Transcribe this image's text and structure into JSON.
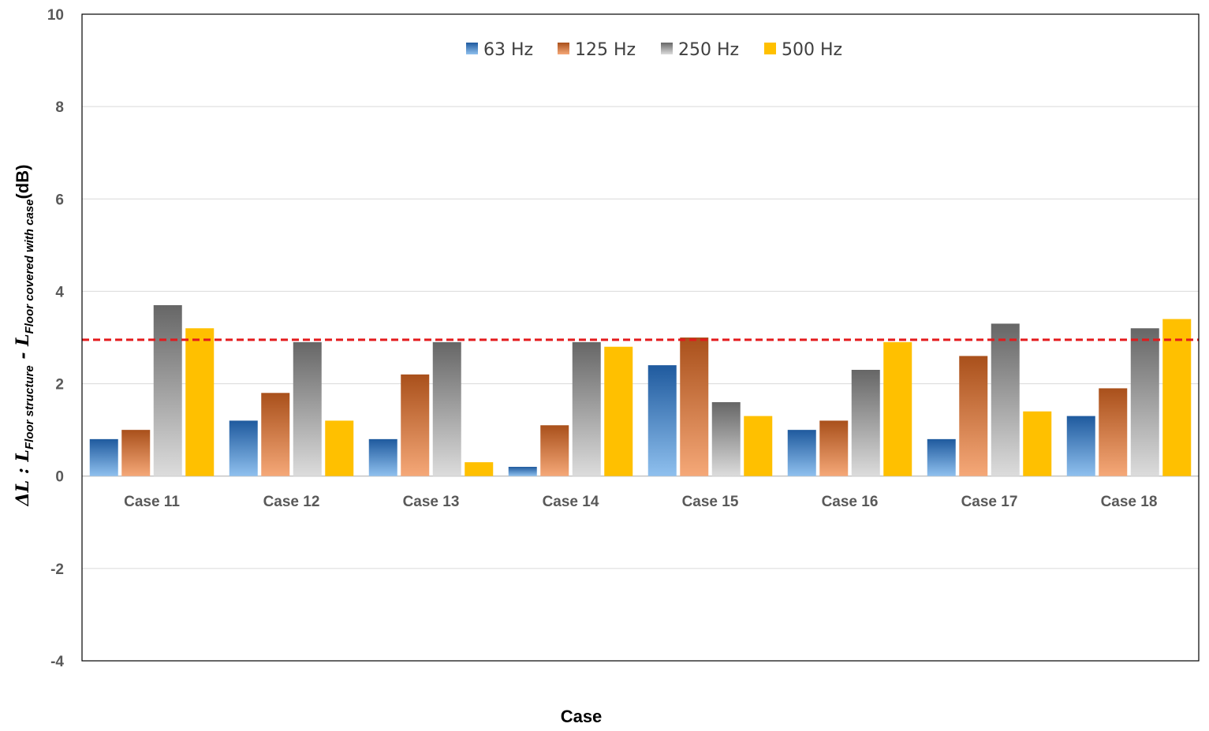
{
  "chart_data": {
    "type": "bar",
    "categories": [
      "Case 11",
      "Case 12",
      "Case 13",
      "Case 14",
      "Case 15",
      "Case 16",
      "Case 17",
      "Case 18"
    ],
    "series": [
      {
        "name": "63 Hz",
        "values": [
          0.8,
          1.2,
          0.8,
          0.2,
          2.4,
          1.0,
          0.8,
          1.3
        ],
        "colors": [
          "#1f5a9e",
          "#8fc0ee"
        ]
      },
      {
        "name": "125 Hz",
        "values": [
          1.0,
          1.8,
          2.2,
          1.1,
          3.0,
          1.2,
          2.6,
          1.9
        ],
        "colors": [
          "#a9501b",
          "#f5a878"
        ]
      },
      {
        "name": "250 Hz",
        "values": [
          3.7,
          2.9,
          2.9,
          2.9,
          1.6,
          2.3,
          3.3,
          3.2
        ],
        "colors": [
          "#666666",
          "#dcdcdc"
        ]
      },
      {
        "name": "500 Hz",
        "values": [
          3.2,
          1.2,
          0.3,
          2.8,
          1.3,
          2.9,
          1.4,
          3.4
        ],
        "colors": [
          "#ffc000",
          "#ffc000"
        ]
      }
    ],
    "ylim": [
      -4,
      10
    ],
    "yticks": [
      -4,
      -2,
      0,
      2,
      4,
      6,
      8,
      10
    ],
    "reference_line": {
      "value": 2.95,
      "color": "#e31a1c"
    },
    "xlabel": "Case",
    "ylabel": {
      "prefix": "ΔL : L",
      "sub1": "Floor structure",
      "mid": " - L",
      "sub2": "Floor covered with case",
      "suffix": "(dB)"
    },
    "legend_position": "top-center",
    "grid": true
  }
}
